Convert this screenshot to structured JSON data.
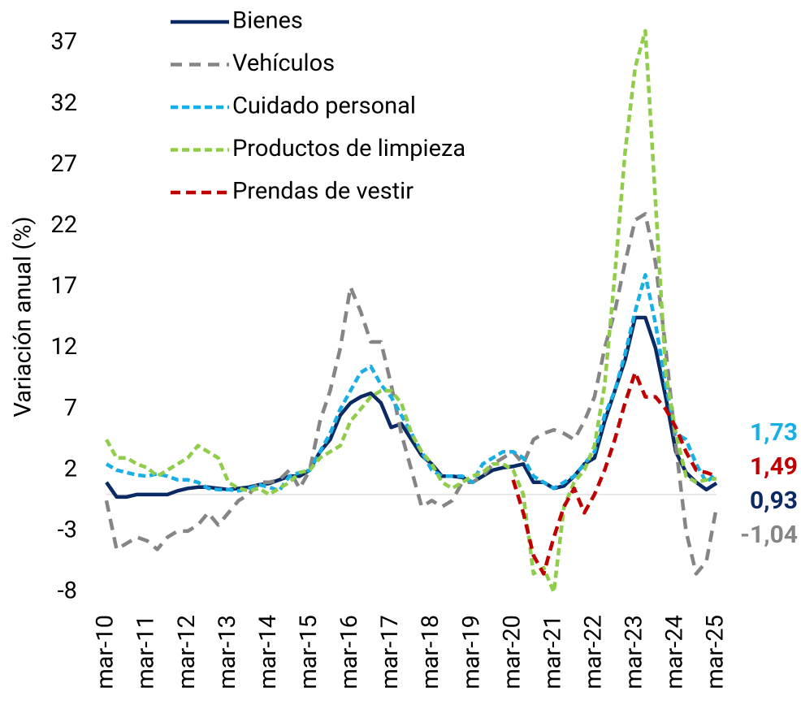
{
  "chart_data": {
    "type": "line",
    "y_label": "Variación anual (%)",
    "categories": [
      "mar-10",
      null,
      null,
      null,
      "mar-11",
      null,
      null,
      null,
      "mar-12",
      null,
      null,
      null,
      "mar-13",
      null,
      null,
      null,
      "mar-14",
      null,
      null,
      null,
      "mar-15",
      null,
      null,
      null,
      "mar-16",
      null,
      null,
      null,
      "mar-17",
      null,
      null,
      null,
      "mar-18",
      null,
      null,
      null,
      "mar-19",
      null,
      null,
      null,
      "mar-20",
      null,
      null,
      null,
      "mar-21",
      null,
      null,
      null,
      "mar-22",
      null,
      null,
      null,
      "mar-23",
      null,
      null,
      null,
      "mar-24",
      null,
      null,
      null,
      "mar-25"
    ],
    "ylim": [
      -8,
      38
    ],
    "yticks": [
      -8,
      -3,
      2,
      7,
      12,
      17,
      22,
      27,
      32,
      37
    ],
    "zero_line": true,
    "legend": "top-left",
    "series": [
      {
        "name": "Bienes",
        "color": "#0b2a63",
        "dash": "solid",
        "values": [
          1.0,
          -0.2,
          -0.2,
          0.0,
          0.0,
          0.0,
          0.0,
          0.3,
          0.5,
          0.6,
          0.6,
          0.5,
          0.4,
          0.5,
          0.6,
          0.8,
          0.9,
          1.2,
          1.5,
          1.5,
          2.0,
          3.5,
          4.5,
          6.5,
          7.5,
          8.0,
          8.3,
          7.5,
          5.5,
          5.8,
          4.5,
          3.2,
          2.5,
          1.5,
          1.5,
          1.4,
          1.0,
          1.5,
          2.0,
          2.2,
          2.3,
          2.5,
          1.0,
          1.0,
          0.5,
          0.7,
          1.5,
          2.5,
          3.0,
          6.0,
          8.5,
          11.0,
          14.5,
          14.5,
          12.0,
          8.0,
          3.5,
          1.8,
          1.0,
          0.4,
          0.93
        ],
        "value_labels": [
          null,
          null,
          null,
          null,
          null,
          null,
          null,
          null,
          null,
          null,
          null,
          null,
          null,
          null,
          null,
          null,
          null,
          null,
          null,
          null,
          null,
          null,
          null,
          null,
          null,
          null,
          null,
          null,
          null,
          null,
          null,
          null,
          null,
          null,
          null,
          null,
          null,
          null,
          null,
          null,
          null,
          null,
          null,
          null,
          null,
          null,
          null,
          null,
          null,
          null,
          null,
          null,
          null,
          null,
          null,
          null,
          null,
          null,
          null,
          null,
          "0,93"
        ]
      },
      {
        "name": "Vehículos",
        "color": "#858585",
        "dash": "long",
        "values": [
          -0.5,
          -4.5,
          -4.0,
          -3.5,
          -3.8,
          -4.5,
          -3.5,
          -3.0,
          -3.0,
          -2.5,
          -1.5,
          -2.5,
          -1.5,
          -0.5,
          0.0,
          1.0,
          1.0,
          1.2,
          2.0,
          0.5,
          2.0,
          6.0,
          8.5,
          12.0,
          17.0,
          15.0,
          12.5,
          12.5,
          9.0,
          5.0,
          2.0,
          -1.0,
          -0.5,
          -1.0,
          -0.5,
          1.0,
          1.0,
          1.5,
          2.5,
          3.0,
          3.5,
          2.5,
          4.5,
          5.0,
          5.3,
          5.0,
          4.5,
          6.0,
          8.0,
          12.0,
          15.0,
          19.0,
          22.5,
          23.0,
          19.0,
          12.0,
          4.0,
          -3.0,
          -6.5,
          -5.5,
          -1.04
        ],
        "value_labels": [
          null,
          null,
          null,
          null,
          null,
          null,
          null,
          null,
          null,
          null,
          null,
          null,
          null,
          null,
          null,
          null,
          null,
          null,
          null,
          null,
          null,
          null,
          null,
          null,
          null,
          null,
          null,
          null,
          null,
          null,
          null,
          null,
          null,
          null,
          null,
          null,
          null,
          null,
          null,
          null,
          null,
          null,
          null,
          null,
          null,
          null,
          null,
          null,
          null,
          null,
          null,
          null,
          null,
          null,
          null,
          null,
          null,
          null,
          null,
          null,
          "-1,04"
        ]
      },
      {
        "name": "Cuidado personal",
        "color": "#18aee6",
        "dash": "short",
        "values": [
          2.5,
          2.0,
          1.8,
          1.6,
          1.5,
          1.7,
          1.5,
          1.2,
          1.2,
          1.0,
          0.5,
          0.4,
          0.4,
          0.3,
          0.5,
          0.8,
          0.6,
          0.3,
          1.5,
          1.8,
          2.0,
          3.5,
          5.0,
          7.0,
          8.5,
          10.0,
          10.5,
          9.0,
          8.0,
          6.5,
          5.0,
          3.5,
          2.0,
          1.5,
          1.5,
          1.5,
          1.0,
          2.5,
          3.0,
          3.5,
          3.5,
          3.0,
          1.5,
          1.0,
          0.5,
          1.0,
          1.5,
          2.5,
          3.5,
          6.5,
          8.5,
          11.5,
          15.0,
          18.0,
          14.0,
          9.0,
          5.0,
          4.5,
          2.5,
          1.0,
          1.73
        ],
        "value_labels": [
          null,
          null,
          null,
          null,
          null,
          null,
          null,
          null,
          null,
          null,
          null,
          null,
          null,
          null,
          null,
          null,
          null,
          null,
          null,
          null,
          null,
          null,
          null,
          null,
          null,
          null,
          null,
          null,
          null,
          null,
          null,
          null,
          null,
          null,
          null,
          null,
          null,
          null,
          null,
          null,
          null,
          null,
          null,
          null,
          null,
          null,
          null,
          null,
          null,
          null,
          null,
          null,
          null,
          null,
          null,
          null,
          null,
          null,
          null,
          null,
          "1,73"
        ]
      },
      {
        "name": "Productos de limpieza",
        "color": "#8fcd4a",
        "dash": "short",
        "values": [
          4.5,
          3.0,
          3.0,
          2.5,
          2.2,
          1.5,
          2.0,
          2.5,
          3.0,
          4.0,
          3.5,
          3.0,
          1.0,
          0.5,
          0.3,
          0.5,
          0.0,
          0.5,
          1.0,
          1.8,
          2.0,
          3.0,
          3.5,
          4.0,
          6.0,
          7.0,
          8.0,
          8.5,
          8.5,
          7.5,
          5.0,
          3.5,
          2.5,
          1.0,
          0.5,
          1.0,
          1.5,
          1.8,
          2.5,
          2.5,
          2.0,
          0.0,
          -6.5,
          -6.0,
          -8.0,
          -1.0,
          1.0,
          2.0,
          4.0,
          9.0,
          18.0,
          28.0,
          35.0,
          38.0,
          24.0,
          10.0,
          5.0,
          1.5,
          1.0,
          1.2,
          1.3
        ]
      },
      {
        "name": "Prendas de vestir",
        "color": "#c00000",
        "dash": "medium",
        "values": [
          null,
          null,
          null,
          null,
          null,
          null,
          null,
          null,
          null,
          null,
          null,
          null,
          null,
          null,
          null,
          null,
          null,
          null,
          null,
          null,
          null,
          null,
          null,
          null,
          null,
          null,
          null,
          null,
          null,
          null,
          null,
          null,
          null,
          null,
          null,
          null,
          null,
          null,
          null,
          null,
          1.2,
          -1.5,
          -5.0,
          -6.5,
          -3.5,
          -1.0,
          0.5,
          -1.5,
          0.0,
          2.0,
          4.5,
          7.5,
          10.0,
          8.0,
          8.0,
          7.0,
          5.5,
          3.5,
          2.0,
          1.8,
          1.49
        ],
        "value_labels": [
          null,
          null,
          null,
          null,
          null,
          null,
          null,
          null,
          null,
          null,
          null,
          null,
          null,
          null,
          null,
          null,
          null,
          null,
          null,
          null,
          null,
          null,
          null,
          null,
          null,
          null,
          null,
          null,
          null,
          null,
          null,
          null,
          null,
          null,
          null,
          null,
          null,
          null,
          null,
          null,
          null,
          null,
          null,
          null,
          null,
          null,
          null,
          null,
          null,
          null,
          null,
          null,
          null,
          null,
          null,
          null,
          null,
          null,
          null,
          null,
          "1,49"
        ]
      }
    ]
  }
}
